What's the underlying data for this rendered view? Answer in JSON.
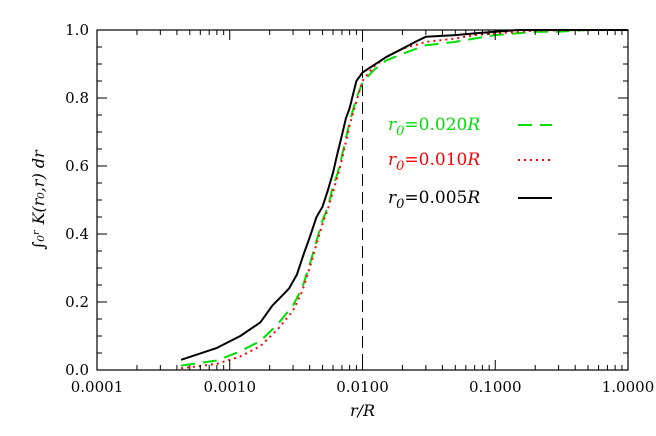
{
  "chart_data": {
    "type": "line",
    "title": "",
    "xlabel": "r/R",
    "ylabel": "∫₀ʳ K(r₀,r) dr",
    "x_scale": "log",
    "xlim": [
      0.0001,
      1.0
    ],
    "ylim": [
      0.0,
      1.0
    ],
    "x_ticks": [
      {
        "value": 0.0001,
        "label": "0.0001"
      },
      {
        "value": 0.001,
        "label": "0.0010"
      },
      {
        "value": 0.01,
        "label": "0.0100"
      },
      {
        "value": 0.1,
        "label": "0.1000"
      },
      {
        "value": 1.0,
        "label": "1.0000"
      }
    ],
    "y_ticks": [
      {
        "value": 0.0,
        "label": "0.0"
      },
      {
        "value": 0.2,
        "label": "0.2"
      },
      {
        "value": 0.4,
        "label": "0.4"
      },
      {
        "value": 0.6,
        "label": "0.6"
      },
      {
        "value": 0.8,
        "label": "0.8"
      },
      {
        "value": 1.0,
        "label": "1.0"
      }
    ],
    "grid": false,
    "legend_position": "right",
    "reference_line": {
      "x": 0.01,
      "style": "dashed",
      "color": "#000000"
    },
    "series": [
      {
        "name": "r₀=0.020R",
        "label_var": "r",
        "label_sub": "0",
        "label_rest": "=0.020",
        "label_unit": "R",
        "color": "#00e000",
        "dash": "long-dash",
        "points": [
          [
            0.00043,
            0.013
          ],
          [
            0.0008,
            0.028
          ],
          [
            0.0012,
            0.055
          ],
          [
            0.0017,
            0.085
          ],
          [
            0.0023,
            0.135
          ],
          [
            0.003,
            0.19
          ],
          [
            0.0035,
            0.24
          ],
          [
            0.004,
            0.31
          ],
          [
            0.0045,
            0.38
          ],
          [
            0.005,
            0.44
          ],
          [
            0.0055,
            0.48
          ],
          [
            0.006,
            0.54
          ],
          [
            0.0065,
            0.58
          ],
          [
            0.007,
            0.63
          ],
          [
            0.0075,
            0.68
          ],
          [
            0.008,
            0.73
          ],
          [
            0.009,
            0.8
          ],
          [
            0.01,
            0.845
          ],
          [
            0.012,
            0.88
          ],
          [
            0.015,
            0.91
          ],
          [
            0.02,
            0.93
          ],
          [
            0.03,
            0.955
          ],
          [
            0.05,
            0.965
          ],
          [
            0.07,
            0.975
          ],
          [
            0.1,
            0.985
          ],
          [
            0.2,
            0.995
          ],
          [
            0.3,
            0.995
          ],
          [
            0.5,
            1.0
          ],
          [
            1.0,
            1.0
          ]
        ]
      },
      {
        "name": "r₀=0.010R",
        "label_var": "r",
        "label_sub": "0",
        "label_rest": "=0.010",
        "label_unit": "R",
        "color": "#ff0000",
        "dash": "dotted",
        "points": [
          [
            0.00043,
            0.005
          ],
          [
            0.0008,
            0.018
          ],
          [
            0.0012,
            0.04
          ],
          [
            0.0017,
            0.07
          ],
          [
            0.0023,
            0.12
          ],
          [
            0.003,
            0.175
          ],
          [
            0.0035,
            0.23
          ],
          [
            0.004,
            0.3
          ],
          [
            0.0045,
            0.37
          ],
          [
            0.005,
            0.43
          ],
          [
            0.0055,
            0.475
          ],
          [
            0.006,
            0.525
          ],
          [
            0.0065,
            0.57
          ],
          [
            0.007,
            0.62
          ],
          [
            0.0075,
            0.67
          ],
          [
            0.008,
            0.72
          ],
          [
            0.009,
            0.79
          ],
          [
            0.01,
            0.85
          ],
          [
            0.012,
            0.89
          ],
          [
            0.015,
            0.92
          ],
          [
            0.02,
            0.945
          ],
          [
            0.03,
            0.965
          ],
          [
            0.05,
            0.975
          ],
          [
            0.07,
            0.985
          ],
          [
            0.1,
            0.99
          ],
          [
            0.2,
            0.998
          ],
          [
            0.5,
            1.0
          ],
          [
            1.0,
            1.0
          ]
        ]
      },
      {
        "name": "r₀=0.005R",
        "label_var": "r",
        "label_sub": "0",
        "label_rest": "=0.005",
        "label_unit": "R",
        "color": "#000000",
        "dash": "solid",
        "points": [
          [
            0.00043,
            0.03
          ],
          [
            0.0008,
            0.065
          ],
          [
            0.0012,
            0.1
          ],
          [
            0.0017,
            0.14
          ],
          [
            0.0021,
            0.19
          ],
          [
            0.0025,
            0.22
          ],
          [
            0.0028,
            0.24
          ],
          [
            0.0032,
            0.28
          ],
          [
            0.0036,
            0.34
          ],
          [
            0.004,
            0.39
          ],
          [
            0.0045,
            0.45
          ],
          [
            0.005,
            0.48
          ],
          [
            0.0055,
            0.53
          ],
          [
            0.006,
            0.58
          ],
          [
            0.0065,
            0.64
          ],
          [
            0.007,
            0.69
          ],
          [
            0.0075,
            0.74
          ],
          [
            0.008,
            0.77
          ],
          [
            0.009,
            0.85
          ],
          [
            0.01,
            0.875
          ],
          [
            0.012,
            0.895
          ],
          [
            0.015,
            0.92
          ],
          [
            0.02,
            0.945
          ],
          [
            0.025,
            0.965
          ],
          [
            0.03,
            0.98
          ],
          [
            0.05,
            0.985
          ],
          [
            0.07,
            0.99
          ],
          [
            0.1,
            0.995
          ],
          [
            0.15,
            1.0
          ],
          [
            1.0,
            1.0
          ]
        ]
      }
    ]
  }
}
